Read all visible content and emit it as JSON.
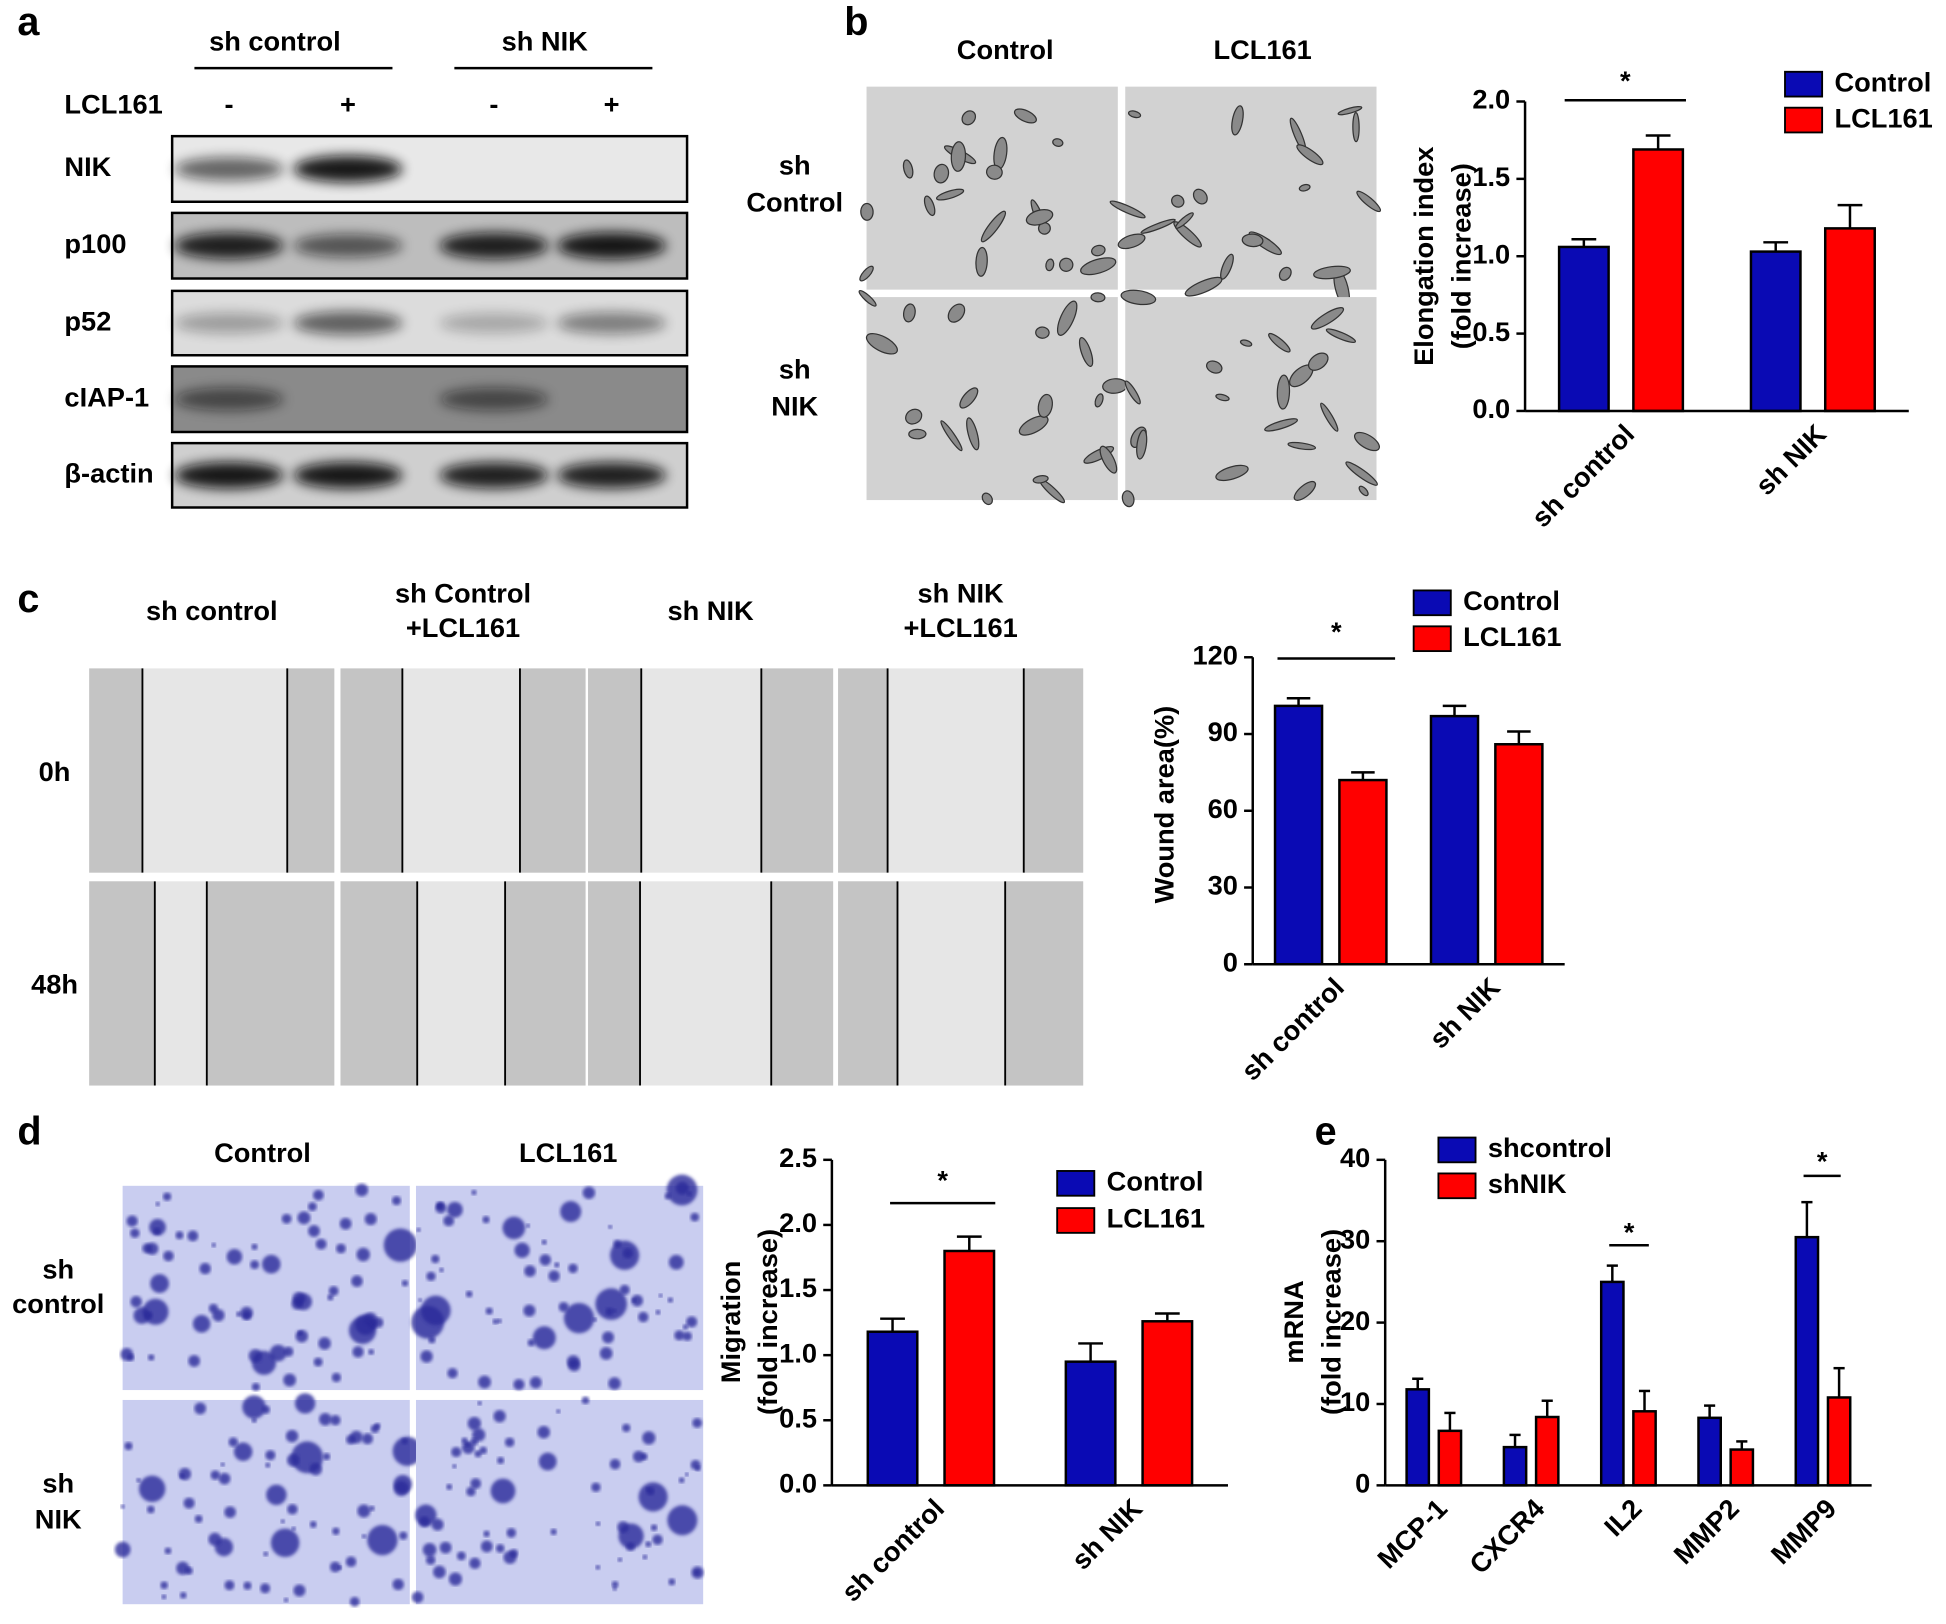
{
  "figure": {
    "panel_letters": [
      "a",
      "b",
      "c",
      "d",
      "e"
    ],
    "blot": {
      "groups": [
        "sh control",
        "sh NIK"
      ],
      "treatment": "LCL161",
      "lanes": [
        "-",
        "+",
        "-",
        "+"
      ],
      "rows": [
        "NIK",
        "p100",
        "p52",
        "cIAP-1",
        "β-actin"
      ]
    },
    "b_images": {
      "columns": [
        "Control",
        "LCL161"
      ],
      "rows": [
        [
          "sh",
          "Control"
        ],
        [
          "sh",
          "NIK"
        ]
      ]
    },
    "c_images": {
      "columns": [
        [
          "sh control"
        ],
        [
          "sh Control",
          "+LCL161"
        ],
        [
          "sh NIK"
        ],
        [
          "sh NIK",
          "+LCL161"
        ]
      ],
      "rows": [
        "0h",
        "48h"
      ]
    },
    "d_images": {
      "columns": [
        "Control",
        "LCL161"
      ],
      "rows": [
        [
          "sh",
          "control"
        ],
        [
          "sh",
          "NIK"
        ]
      ]
    }
  },
  "chart_data": [
    {
      "type": "bar",
      "categories": [
        "sh control",
        "sh NIK"
      ],
      "ylabel": [
        "Elongation index",
        "(fold increase)"
      ],
      "series": [
        {
          "name": "Control",
          "color": "#0a0ab4",
          "values": [
            1.06,
            1.03
          ],
          "errors": [
            0.05,
            0.06
          ]
        },
        {
          "name": "LCL161",
          "color": "#ff0000",
          "values": [
            1.69,
            1.18
          ],
          "errors": [
            0.09,
            0.15
          ]
        }
      ],
      "ylim": [
        0,
        2.0
      ],
      "yticks": [
        {
          "value": 0,
          "label": "0.0"
        },
        {
          "value": 0.5,
          "label": "0.5"
        },
        {
          "value": 1,
          "label": "1.0"
        },
        {
          "value": 1.5,
          "label": "1.5"
        },
        {
          "value": 2,
          "label": "2.0"
        }
      ],
      "annotations": [
        "*"
      ]
    },
    {
      "type": "bar",
      "categories": [
        "sh control",
        "sh NIK"
      ],
      "ylabel": [
        "Wound area(%)"
      ],
      "series": [
        {
          "name": "Control",
          "color": "#0a0ab4",
          "values": [
            101,
            97
          ],
          "errors": [
            3,
            4
          ]
        },
        {
          "name": "LCL161",
          "color": "#ff0000",
          "values": [
            72,
            86
          ],
          "errors": [
            3,
            5
          ]
        }
      ],
      "ylim": [
        0,
        120
      ],
      "yticks": [
        0,
        30,
        60,
        90,
        120
      ],
      "annotations": [
        "*"
      ]
    },
    {
      "type": "bar",
      "categories": [
        "sh control",
        "sh NIK"
      ],
      "ylabel": [
        "Migration",
        "(fold increase)"
      ],
      "series": [
        {
          "name": "Control",
          "color": "#0a0ab4",
          "values": [
            1.18,
            0.95
          ],
          "errors": [
            0.1,
            0.14
          ]
        },
        {
          "name": "LCL161",
          "color": "#ff0000",
          "values": [
            1.8,
            1.26
          ],
          "errors": [
            0.11,
            0.06
          ]
        }
      ],
      "ylim": [
        0,
        2.5
      ],
      "yticks": [
        {
          "value": 0,
          "label": "0.0"
        },
        {
          "value": 0.5,
          "label": "0.5"
        },
        {
          "value": 1,
          "label": "1.0"
        },
        {
          "value": 1.5,
          "label": "1.5"
        },
        {
          "value": 2,
          "label": "2.0"
        },
        {
          "value": 2.5,
          "label": "2.5"
        }
      ],
      "annotations": [
        "*"
      ]
    },
    {
      "type": "bar",
      "categories": [
        "MCP-1",
        "CXCR4",
        "IL2",
        "MMP2",
        "MMP9"
      ],
      "ylabel": [
        "mRNA",
        "(fold increase)"
      ],
      "series": [
        {
          "name": "shcontrol",
          "color": "#0a0ab4",
          "values": [
            11.8,
            4.7,
            25,
            8.3,
            30.5
          ],
          "errors": [
            1.3,
            1.5,
            2,
            1.5,
            4.3
          ]
        },
        {
          "name": "shNIK",
          "color": "#ff0000",
          "values": [
            6.7,
            8.4,
            9.1,
            4.4,
            10.8
          ],
          "errors": [
            2.2,
            2,
            2.5,
            1,
            3.6
          ]
        }
      ],
      "ylim": [
        0,
        40
      ],
      "yticks": [
        0,
        10,
        20,
        30,
        40
      ],
      "annotations": [
        "*",
        "*"
      ]
    }
  ]
}
